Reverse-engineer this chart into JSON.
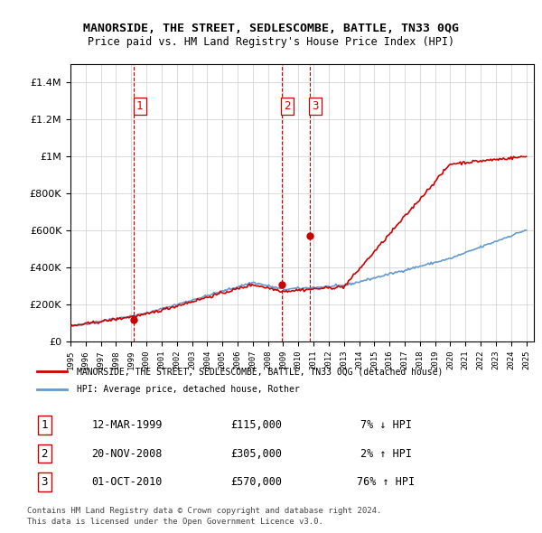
{
  "title": "MANORSIDE, THE STREET, SEDLESCOMBE, BATTLE, TN33 0QG",
  "subtitle": "Price paid vs. HM Land Registry's House Price Index (HPI)",
  "legend_line1": "MANORSIDE, THE STREET, SEDLESCOMBE, BATTLE, TN33 0QG (detached house)",
  "legend_line2": "HPI: Average price, detached house, Rother",
  "footer1": "Contains HM Land Registry data © Crown copyright and database right 2024.",
  "footer2": "This data is licensed under the Open Government Licence v3.0.",
  "transactions": [
    {
      "num": 1,
      "date": "12-MAR-1999",
      "price": "£115,000",
      "hpi": "7% ↓ HPI"
    },
    {
      "num": 2,
      "date": "20-NOV-2008",
      "price": "£305,000",
      "hpi": "2% ↑ HPI"
    },
    {
      "num": 3,
      "date": "01-OCT-2010",
      "price": "£570,000",
      "hpi": "76% ↑ HPI"
    }
  ],
  "transaction_years": [
    1999.19,
    2008.89,
    2010.75
  ],
  "transaction_prices": [
    115000,
    305000,
    570000
  ],
  "vline_color": "#cc0000",
  "red_line_color": "#cc0000",
  "blue_line_color": "#6699cc",
  "ylim": [
    0,
    1500000
  ],
  "yticks": [
    0,
    200000,
    400000,
    600000,
    800000,
    1000000,
    1200000,
    1400000
  ],
  "background_color": "#ffffff",
  "grid_color": "#cccccc"
}
